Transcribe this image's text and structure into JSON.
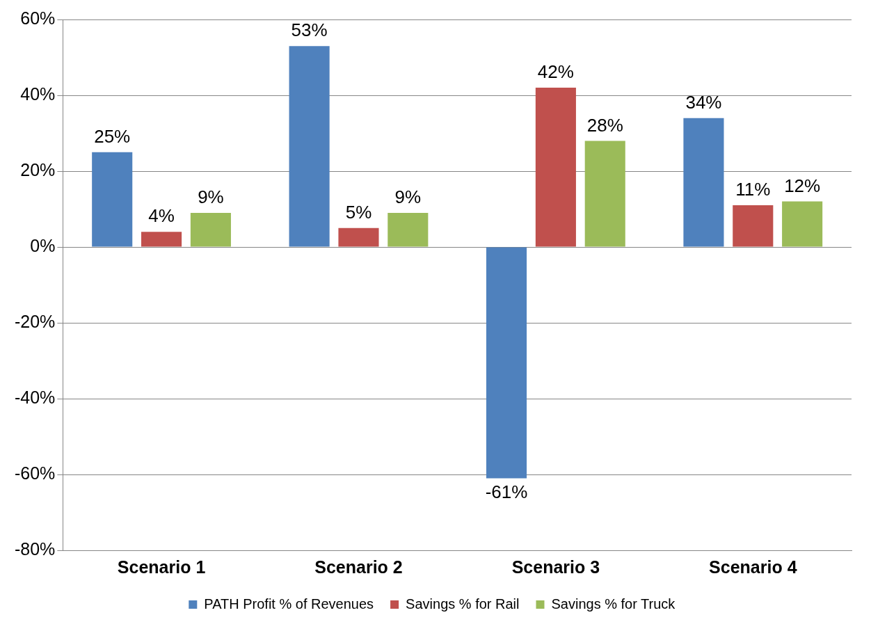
{
  "chart_data": {
    "type": "bar",
    "categories": [
      "Scenario 1",
      "Scenario 2",
      "Scenario 3",
      "Scenario 4"
    ],
    "series": [
      {
        "name": "PATH Profit % of Revenues",
        "color": "#4f81bd",
        "values": [
          25,
          53,
          -61,
          34
        ],
        "value_labels": [
          "25%",
          "53%",
          "-61%",
          "34%"
        ]
      },
      {
        "name": "Savings % for Rail",
        "color": "#c0504d",
        "values": [
          4,
          5,
          42,
          11
        ],
        "value_labels": [
          "4%",
          "5%",
          "42%",
          "11%"
        ]
      },
      {
        "name": "Savings % for Truck",
        "color": "#9bbb59",
        "values": [
          9,
          9,
          28,
          12
        ],
        "value_labels": [
          "9%",
          "9%",
          "28%",
          "12%"
        ]
      }
    ],
    "ylim": [
      -80,
      60
    ],
    "yticks": [
      {
        "value": -80,
        "label": "-80%"
      },
      {
        "value": -60,
        "label": "-60%"
      },
      {
        "value": -40,
        "label": "-40%"
      },
      {
        "value": -20,
        "label": "-20%"
      },
      {
        "value": 0,
        "label": "0%"
      },
      {
        "value": 20,
        "label": "20%"
      },
      {
        "value": 40,
        "label": "40%"
      },
      {
        "value": 60,
        "label": "60%"
      }
    ],
    "grid": "y",
    "legend": "bottom"
  }
}
